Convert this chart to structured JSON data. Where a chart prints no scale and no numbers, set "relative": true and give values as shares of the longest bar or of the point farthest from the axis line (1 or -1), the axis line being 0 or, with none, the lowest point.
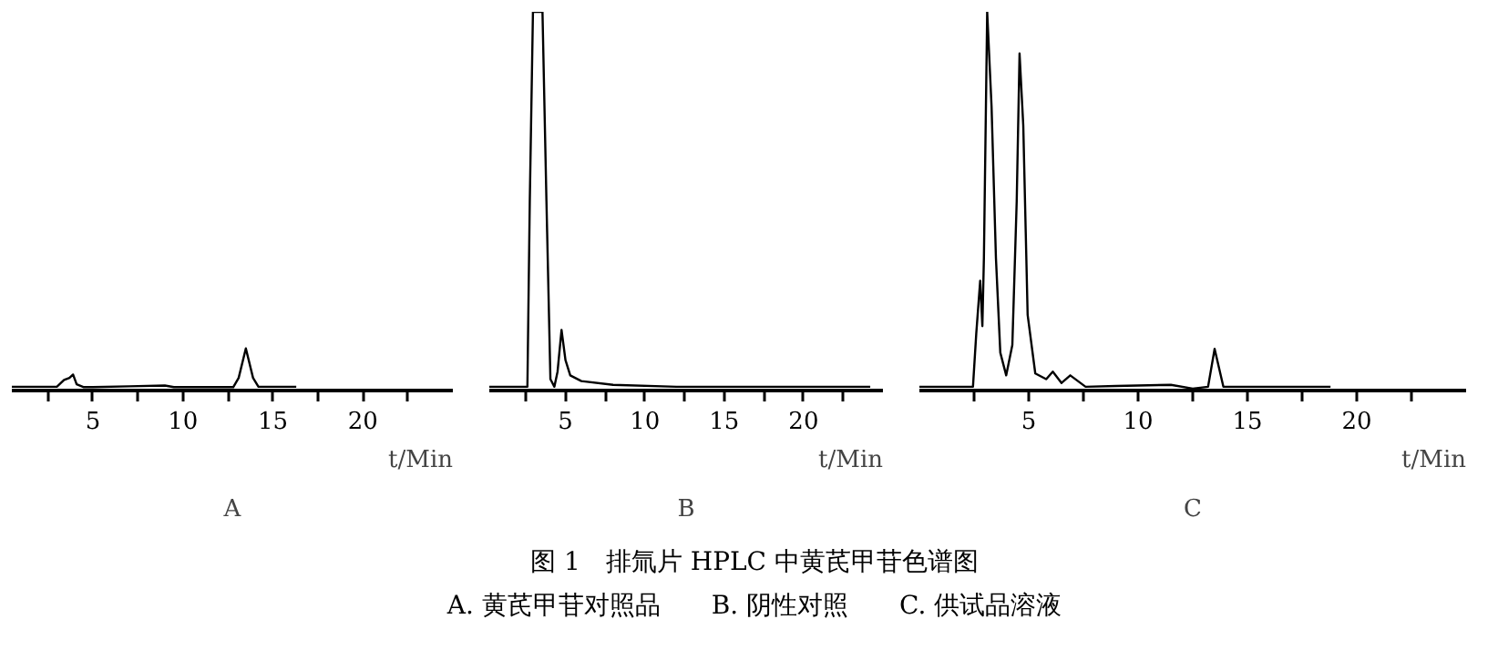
{
  "chart_data": [
    {
      "type": "line",
      "title": "A",
      "xlabel": "t/Min",
      "relative": true,
      "tick_labels": "x",
      "xlim": [
        0.5,
        25
      ],
      "xticks": [
        {
          "value": 2.5,
          "label": null
        },
        5,
        {
          "value": 7.5,
          "label": null
        },
        10,
        {
          "value": 12.5,
          "label": null
        },
        15,
        {
          "value": 17.5,
          "label": null
        },
        20,
        {
          "value": 22.5,
          "label": null
        }
      ],
      "x": [
        0.5,
        3.0,
        3.4,
        3.7,
        3.9,
        4.1,
        4.5,
        5,
        7,
        9,
        9.5,
        12.8,
        13.1,
        13.5,
        13.9,
        14.2,
        16.3
      ],
      "series": [
        {
          "color": "#000000",
          "values": [
            0.09,
            0.09,
            0.25,
            0.3,
            0.38,
            0.15,
            0.08,
            0.08,
            0.1,
            0.12,
            0.08,
            0.08,
            0.3,
            1.0,
            0.3,
            0.09,
            0.09
          ]
        }
      ],
      "annotations": [
        "图 1　排氚片 HPLC 中黄芪甲苷色谱图",
        "A. 黄芪甲苷对照品　　B. 阴性对照　　C. 供试品溶液"
      ]
    },
    {
      "type": "line",
      "title": "B",
      "xlabel": "t/Min",
      "relative": true,
      "tick_labels": "x",
      "xlim": [
        0.2,
        25
      ],
      "xticks": [
        {
          "value": 2.5,
          "label": null
        },
        5,
        {
          "value": 7.5,
          "label": null
        },
        10,
        {
          "value": 12.5,
          "label": null
        },
        15,
        {
          "value": 17.5,
          "label": null
        },
        20,
        {
          "value": 22.5,
          "label": null
        }
      ],
      "x": [
        0.2,
        2.6,
        2.75,
        2.95,
        3.55,
        3.8,
        4.05,
        4.3,
        4.5,
        4.75,
        5.0,
        5.3,
        6,
        8,
        12,
        24.2
      ],
      "series": [
        {
          "color": "#000000",
          "values": [
            0.01,
            0.01,
            0.5,
            1,
            1,
            0.5,
            0.03,
            0.01,
            0.05,
            0.16,
            0.08,
            0.04,
            0.025,
            0.015,
            0.01,
            0.01
          ]
        }
      ]
    },
    {
      "type": "line",
      "title": "C",
      "xlabel": "t/Min",
      "relative": true,
      "tick_labels": "x",
      "xlim": [
        0,
        25
      ],
      "xticks": [
        {
          "value": 2.5,
          "label": null
        },
        5,
        {
          "value": 7.5,
          "label": null
        },
        10,
        {
          "value": 12.5,
          "label": null
        },
        15,
        {
          "value": 17.5,
          "label": null
        },
        20,
        {
          "value": 22.5,
          "label": null
        }
      ],
      "x": [
        0,
        2.45,
        2.6,
        2.78,
        2.88,
        2.95,
        3.1,
        3.3,
        3.5,
        3.7,
        3.97,
        4.25,
        4.45,
        4.58,
        4.75,
        4.95,
        5.3,
        5.8,
        6.1,
        6.5,
        6.9,
        7.6,
        9,
        11.5,
        12.5,
        13.2,
        13.5,
        13.9,
        18.8
      ],
      "series": [
        {
          "color": "#000000",
          "values": [
            0.01,
            0.01,
            0.15,
            0.29,
            0.17,
            0.35,
            1.0,
            0.75,
            0.35,
            0.1,
            0.04,
            0.12,
            0.5,
            0.89,
            0.7,
            0.2,
            0.045,
            0.03,
            0.05,
            0.02,
            0.04,
            0.01,
            0.012,
            0.015,
            0.005,
            0.01,
            0.11,
            0.01,
            0.01
          ]
        }
      ]
    }
  ]
}
